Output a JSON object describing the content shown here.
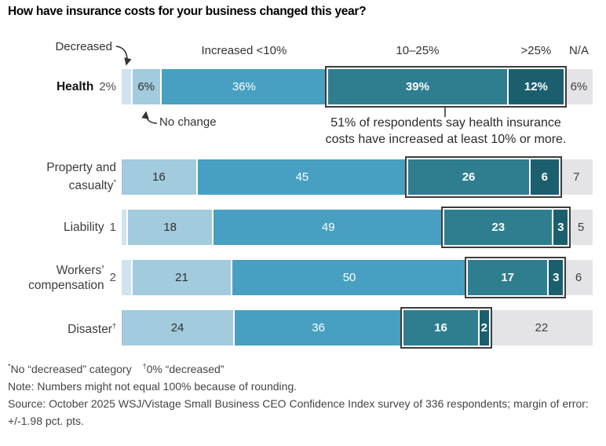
{
  "title": "How have insurance costs for your business changed this year?",
  "annotations": {
    "decreased_label": "Decreased",
    "no_change_label": "No change",
    "callout_line1": "51% of respondents say health insurance",
    "callout_line2": "costs have increased at least 10% or more."
  },
  "colors": {
    "decreased": "#cfe3ef",
    "no_change": "#a2cbde",
    "increased_lt_10": "#47a0c1",
    "increased_10_25": "#2e7e90",
    "increased_gt_25": "#1b5f6e",
    "na": "#e4e4e6",
    "highlight_border": "#3d3d3d"
  },
  "chart_data": {
    "type": "bar",
    "stacked": true,
    "orientation": "horizontal",
    "title": "How have insurance costs for your business changed this year?",
    "segments_order": [
      "decreased",
      "no_change",
      "increased_lt_10",
      "increased_10_25",
      "increased_gt_25",
      "na"
    ],
    "legend_entries": [
      "Decreased",
      "No change",
      "Increased <10%",
      "10–25%",
      ">25%",
      "N/A"
    ],
    "header_labels": [
      "Increased <10%",
      "10–25%",
      ">25%",
      "N/A"
    ],
    "highlight_note": "Box highlights segments of 10% increase or more",
    "rows": [
      {
        "label_lines": [
          "Health"
        ],
        "label_sup": "",
        "label_bold": true,
        "decreased_display": "2%",
        "values": [
          2,
          6,
          36,
          39,
          12,
          6
        ],
        "segment_labels": [
          "",
          "6%",
          "36%",
          "39%",
          "12%",
          "6%"
        ]
      },
      {
        "label_lines": [
          "Property and",
          "casualty"
        ],
        "label_sup": "*",
        "label_bold": false,
        "decreased_display": "",
        "values": [
          0,
          16,
          45,
          26,
          6,
          7
        ],
        "segment_labels": [
          "",
          "16",
          "45",
          "26",
          "6",
          "7"
        ]
      },
      {
        "label_lines": [
          "Liability"
        ],
        "label_sup": "",
        "label_bold": false,
        "decreased_display": "1",
        "values": [
          1,
          18,
          49,
          23,
          3,
          5
        ],
        "segment_labels": [
          "",
          "18",
          "49",
          "23",
          "3",
          "5"
        ]
      },
      {
        "label_lines": [
          "Workers’",
          "compensation"
        ],
        "label_sup": "",
        "label_bold": false,
        "decreased_display": "2",
        "values": [
          2,
          21,
          50,
          17,
          3,
          6
        ],
        "segment_labels": [
          "",
          "21",
          "50",
          "17",
          "3",
          "6"
        ]
      },
      {
        "label_lines": [
          "Disaster"
        ],
        "label_sup": "†",
        "label_bold": false,
        "decreased_display": "",
        "values": [
          0,
          24,
          36,
          16,
          2,
          22
        ],
        "segment_labels": [
          "",
          "24",
          "36",
          "16",
          "2",
          "22"
        ]
      }
    ]
  },
  "footnotes": {
    "fn1_sup1": "*",
    "fn1_text1": "No “decreased” category",
    "fn1_sup2": "†",
    "fn1_text2": "0% “decreased”",
    "note": "Note: Numbers might not equal 100% because of rounding.",
    "source": "Source: October 2025 WSJ/Vistage Small Business CEO Confidence Index survey of 336 respondents; margin of error: +/-1.98 pct. pts."
  }
}
